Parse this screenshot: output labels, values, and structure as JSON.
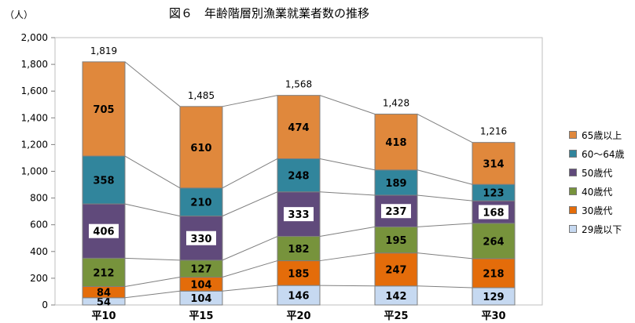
{
  "chart_data": {
    "type": "bar",
    "stacked": true,
    "title": "図６　年齢階層別漁業就業者数の推移",
    "ylabel": "（人）",
    "xlabel": "",
    "categories": [
      "平10",
      "平15",
      "平20",
      "平25",
      "平30"
    ],
    "ylim": [
      0,
      2000
    ],
    "yticks": [
      0,
      200,
      400,
      600,
      800,
      1000,
      1200,
      1400,
      1600,
      1800,
      2000
    ],
    "ytick_labels": [
      "0",
      "200",
      "400",
      "600",
      "800",
      "1,000",
      "1,200",
      "1,400",
      "1,600",
      "1,800",
      "2,000"
    ],
    "totals": [
      1819,
      1485,
      1568,
      1428,
      1216
    ],
    "total_labels": [
      "1,819",
      "1,485",
      "1,568",
      "1,428",
      "1,216"
    ],
    "series": [
      {
        "name": "29歳以下",
        "values": [
          54,
          104,
          146,
          142,
          129
        ],
        "color": "#c6d9f1"
      },
      {
        "name": "30歳代",
        "values": [
          84,
          104,
          185,
          247,
          218
        ],
        "color": "#e46c0a"
      },
      {
        "name": "40歳代",
        "values": [
          212,
          127,
          182,
          195,
          264
        ],
        "color": "#77933c"
      },
      {
        "name": "50歳代",
        "values": [
          406,
          330,
          333,
          237,
          168
        ],
        "color": "#604a7b"
      },
      {
        "name": "60～64歳",
        "values": [
          358,
          210,
          248,
          189,
          123
        ],
        "color": "#31859c"
      },
      {
        "name": "65歳以上",
        "values": [
          705,
          610,
          474,
          418,
          314
        ],
        "color": "#e0883c"
      }
    ],
    "legend_position": "right",
    "grid": false,
    "connector_lines": true
  }
}
